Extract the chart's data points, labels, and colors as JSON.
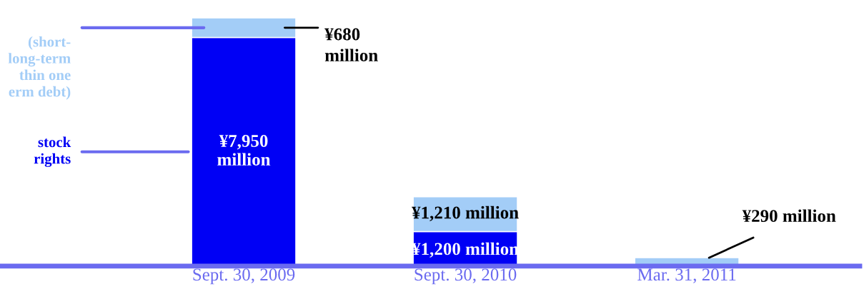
{
  "chart_data": {
    "type": "bar",
    "stacked": true,
    "categories": [
      "Sept. 30, 2009",
      "Sept. 30, 2010",
      "Mar. 31, 2011"
    ],
    "series": [
      {
        "name": "stock\nrights",
        "color": "#0000f5",
        "values": [
          7950,
          1200,
          0
        ],
        "value_labels": [
          "¥7,950 million",
          "¥1,200 million",
          null
        ]
      },
      {
        "name": "(short-\nlong-term\nthin one\nerm debt)",
        "color": "#a3cdf7",
        "values": [
          680,
          1210,
          290
        ],
        "value_labels": [
          "¥680 million",
          "¥1,210 million",
          "¥290 million"
        ]
      }
    ],
    "grid": false,
    "legend": false
  }
}
